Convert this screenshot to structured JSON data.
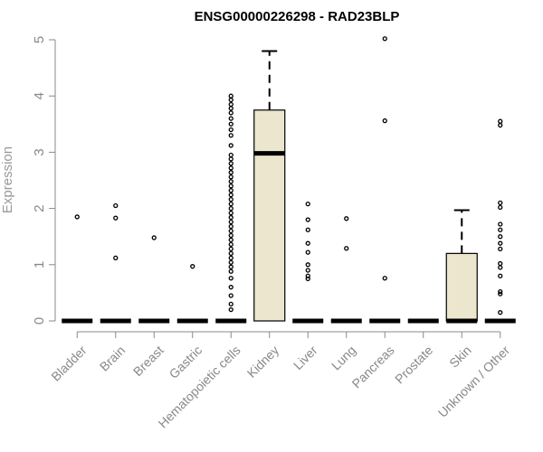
{
  "colors": {
    "box_fill": "#ece6cf",
    "stroke": "#000000",
    "axis": "#888888",
    "label": "#888888"
  },
  "chart_data": {
    "type": "boxplot",
    "title": "ENSG00000226298 - RAD23BLP",
    "xlabel": "",
    "ylabel": "Expression",
    "ylim": [
      0,
      5
    ],
    "yticks": [
      "0",
      "1",
      "2",
      "3",
      "4",
      "5"
    ],
    "categories": [
      "Bladder",
      "Brain",
      "Breast",
      "Gastric",
      "Hematopoietic cells",
      "Kidney",
      "Liver",
      "Lung",
      "Pancreas",
      "Prostate",
      "Skin",
      "Unknown / Other"
    ],
    "boxes": [
      {
        "name": "Bladder",
        "min": 0,
        "q1": 0,
        "median": 0,
        "q3": 0,
        "max": 0,
        "outliers": [
          1.85
        ]
      },
      {
        "name": "Brain",
        "min": 0,
        "q1": 0,
        "median": 0,
        "q3": 0,
        "max": 0,
        "outliers": [
          2.05,
          1.83,
          1.12
        ]
      },
      {
        "name": "Breast",
        "min": 0,
        "q1": 0,
        "median": 0,
        "q3": 0,
        "max": 0,
        "outliers": [
          1.48
        ]
      },
      {
        "name": "Gastric",
        "min": 0,
        "q1": 0,
        "median": 0,
        "q3": 0,
        "max": 0,
        "outliers": [
          0.97
        ]
      },
      {
        "name": "Hematopoietic cells",
        "min": 0,
        "q1": 0,
        "median": 0,
        "q3": 0,
        "max": 0,
        "outliers": [
          4.0,
          3.93,
          3.85,
          3.78,
          3.7,
          3.6,
          3.5,
          3.4,
          3.3,
          3.12,
          2.95,
          2.88,
          2.8,
          2.72,
          2.64,
          2.56,
          2.48,
          2.4,
          2.32,
          2.24,
          2.16,
          2.08,
          2.0,
          1.92,
          1.84,
          1.76,
          1.68,
          1.6,
          1.52,
          1.44,
          1.36,
          1.28,
          1.2,
          1.12,
          1.04,
          0.96,
          0.88,
          0.76,
          0.6,
          0.45,
          0.3,
          0.2
        ]
      },
      {
        "name": "Kidney",
        "min": 0,
        "q1": 0,
        "median": 2.98,
        "q3": 3.75,
        "max": 4.8,
        "outliers": []
      },
      {
        "name": "Liver",
        "min": 0,
        "q1": 0,
        "median": 0,
        "q3": 0,
        "max": 0,
        "outliers": [
          2.08,
          1.8,
          1.62,
          1.38,
          1.22,
          1.0,
          0.9,
          0.8,
          0.75
        ]
      },
      {
        "name": "Lung",
        "min": 0,
        "q1": 0,
        "median": 0,
        "q3": 0,
        "max": 0,
        "outliers": [
          1.82,
          1.29
        ]
      },
      {
        "name": "Pancreas",
        "min": 0,
        "q1": 0,
        "median": 0,
        "q3": 0,
        "max": 0,
        "outliers": [
          5.02,
          3.56,
          0.76
        ]
      },
      {
        "name": "Prostate",
        "min": 0,
        "q1": 0,
        "median": 0,
        "q3": 0,
        "max": 0,
        "outliers": []
      },
      {
        "name": "Skin",
        "min": 0,
        "q1": 0,
        "median": 0,
        "q3": 1.2,
        "max": 1.97,
        "outliers": []
      },
      {
        "name": "Unknown / Other",
        "min": 0,
        "q1": 0,
        "median": 0,
        "q3": 0,
        "max": 0,
        "outliers": [
          3.55,
          3.48,
          2.1,
          2.02,
          1.72,
          1.62,
          1.5,
          1.38,
          1.28,
          1.02,
          0.95,
          0.8,
          0.52,
          0.48,
          0.15
        ]
      }
    ]
  }
}
